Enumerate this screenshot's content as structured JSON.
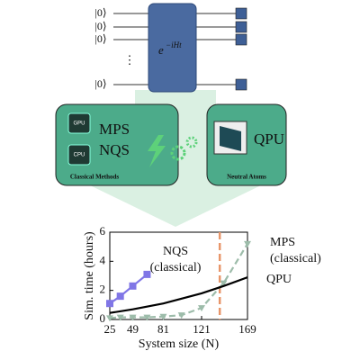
{
  "diagram": {
    "circuit": {
      "qubits": [
        "|0⟩",
        "|0⟩",
        "|0⟩",
        "|0⟩"
      ],
      "ellipsis": "⋮",
      "gate_base": "e",
      "gate_exponent": "−iHt"
    },
    "classical": {
      "chips": [
        "GPU",
        "CPU"
      ],
      "methods": [
        "MPS",
        "NQS"
      ],
      "caption": "Classical Methods"
    },
    "quantum": {
      "label": "QPU",
      "caption": "Neutral Atoms"
    }
  },
  "chart_data": {
    "type": "line",
    "xlabel": "System size (N)",
    "ylabel": "Sim. time (hours)",
    "xlim": [
      25,
      169
    ],
    "xticks": [
      25,
      49,
      81,
      121,
      169
    ],
    "ylim": [
      0,
      6
    ],
    "yticks": [
      0,
      2,
      4,
      6
    ],
    "threshold_x": 140,
    "threshold_color": "#e8966a",
    "series": [
      {
        "name": "NQS (classical)",
        "color": "#8076e6",
        "marker": "square",
        "dashed": false,
        "x": [
          25,
          36,
          49,
          64
        ],
        "values": [
          1.1,
          1.6,
          2.3,
          3.1
        ]
      },
      {
        "name": "MPS (classical)",
        "color": "#9dbcaa",
        "marker": "triangle",
        "dashed": true,
        "x": [
          25,
          36,
          49,
          64,
          81,
          100,
          121,
          144,
          169
        ],
        "values": [
          0.1,
          0.15,
          0.15,
          0.15,
          0.2,
          0.3,
          0.8,
          2.5,
          5.2
        ]
      },
      {
        "name": "QPU",
        "color": "#000000",
        "marker": "none",
        "dashed": false,
        "x": [
          25,
          49,
          81,
          121,
          144,
          169
        ],
        "values": [
          0.45,
          0.7,
          1.1,
          1.8,
          2.3,
          2.9
        ]
      }
    ]
  }
}
